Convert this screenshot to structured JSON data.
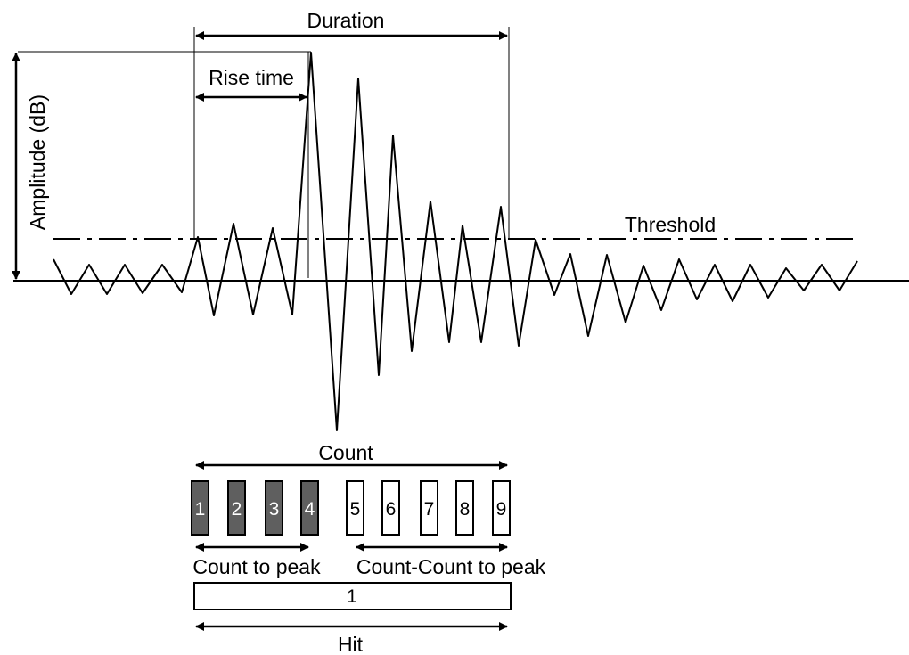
{
  "labels": {
    "duration": "Duration",
    "rise_time": "Rise time",
    "amplitude": "Amplitude (dB)",
    "threshold": "Threshold",
    "count": "Count",
    "count_to_peak": "Count to peak",
    "count_count_to_peak": "Count-Count to peak",
    "hit": "Hit"
  },
  "count_boxes": [
    {
      "label": "1",
      "before_peak": true
    },
    {
      "label": "2",
      "before_peak": true
    },
    {
      "label": "3",
      "before_peak": true
    },
    {
      "label": "4",
      "before_peak": true
    },
    {
      "label": "5",
      "before_peak": false
    },
    {
      "label": "6",
      "before_peak": false
    },
    {
      "label": "7",
      "before_peak": false
    },
    {
      "label": "8",
      "before_peak": false
    },
    {
      "label": "9",
      "before_peak": false
    }
  ],
  "hit_box": {
    "label": "1"
  },
  "colors": {
    "filled_box": "#5f5f5f",
    "line": "#000000",
    "background": "#ffffff"
  }
}
